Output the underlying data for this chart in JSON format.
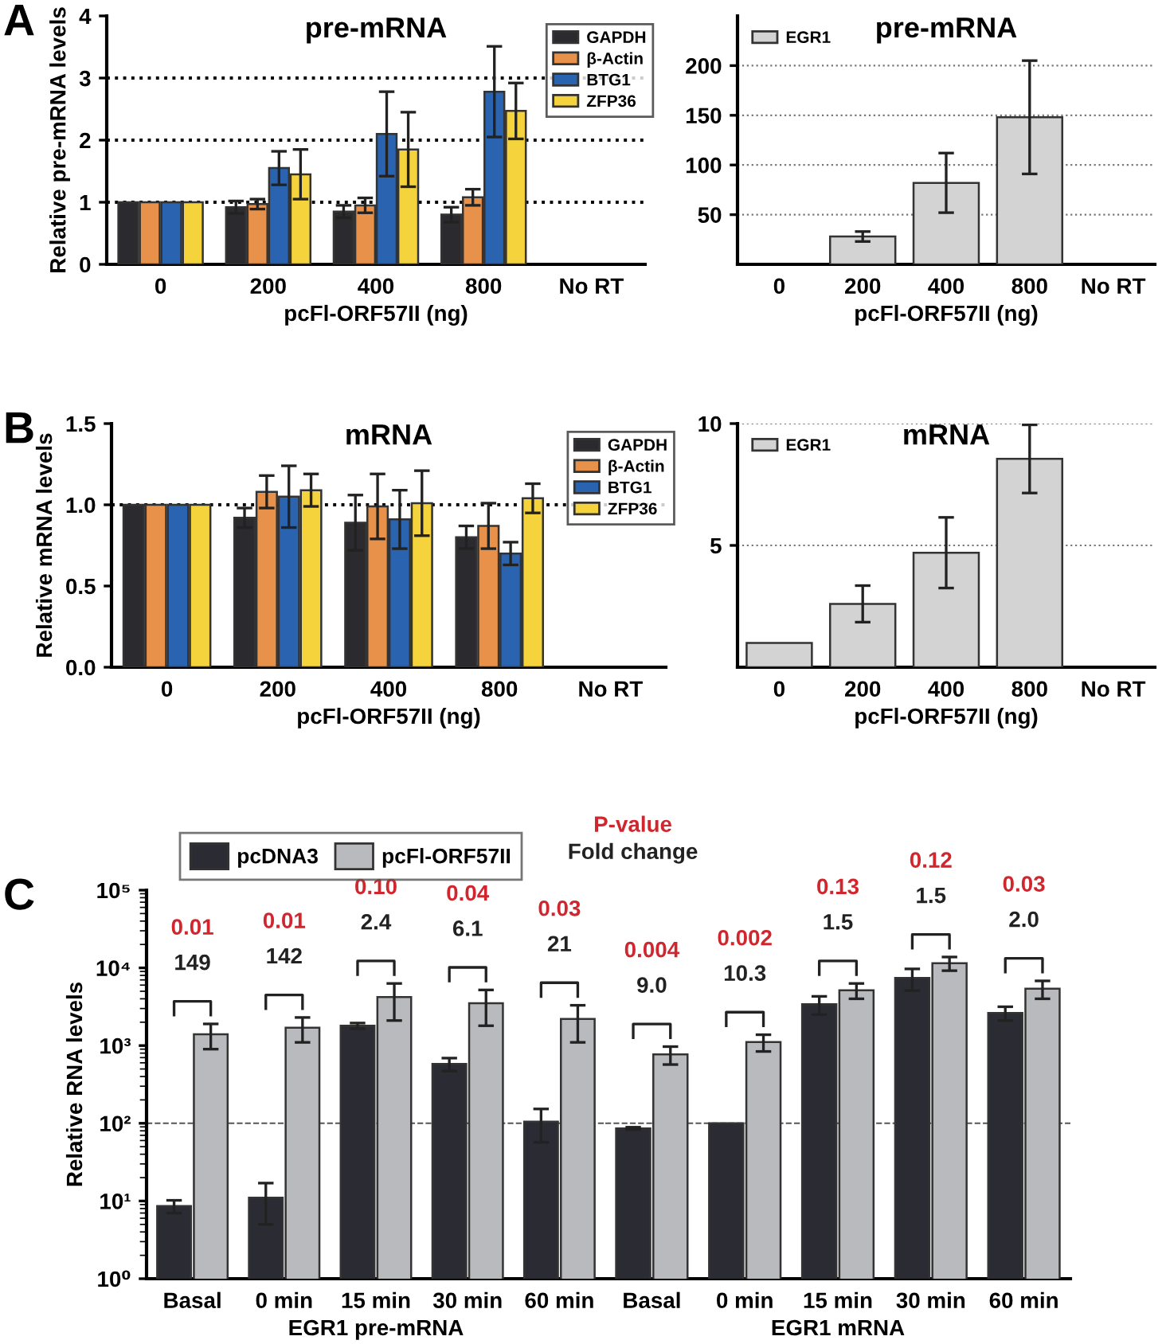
{
  "chart_data": [
    {
      "type": "bar",
      "title": "pre-mRNA",
      "xlabel": "pcFl-ORF57II (ng)",
      "ylabel": "Relative pre-mRNA levels",
      "annotations": [
        "A"
      ],
      "categories": [
        "0",
        "200",
        "400",
        "800",
        "No RT"
      ],
      "series": [
        {
          "name": "GAPDH",
          "color": "#2b2b2f",
          "values": [
            1,
            0.92,
            0.85,
            0.8,
            null
          ],
          "errors": [
            null,
            0.1,
            0.1,
            0.12,
            null
          ]
        },
        {
          "name": "β-Actin",
          "color": "#e8914a",
          "values": [
            1,
            0.97,
            0.95,
            1.08,
            null
          ],
          "errors": [
            null,
            0.08,
            0.12,
            0.13,
            null
          ]
        },
        {
          "name": "BTG1",
          "color": "#2a64b0",
          "values": [
            1,
            1.55,
            2.1,
            2.78,
            null
          ],
          "errors": [
            null,
            0.27,
            0.68,
            0.73,
            null
          ]
        },
        {
          "name": "ZFP36",
          "color": "#f5d33c",
          "values": [
            1,
            1.45,
            1.85,
            2.47,
            null
          ],
          "errors": [
            null,
            0.4,
            0.6,
            0.45,
            null
          ]
        }
      ],
      "ylim": [
        0,
        4
      ],
      "yticks": [
        0,
        1,
        2,
        3,
        4
      ],
      "grid": false,
      "legend": "top right",
      "ref_lines": [
        {
          "axis": "y",
          "value": 1,
          "line_style": "dotted",
          "color": "#000000"
        },
        {
          "axis": "y",
          "value": 2,
          "line_style": "dotted",
          "color": "#000000"
        },
        {
          "axis": "y",
          "value": 3,
          "line_style": "dotted",
          "color": "#000000"
        }
      ]
    },
    {
      "type": "bar",
      "title": "pre-mRNA",
      "xlabel": "pcFl-ORF57II (ng)",
      "categories": [
        "0",
        "200",
        "400",
        "800",
        "No RT"
      ],
      "series": [
        {
          "name": "EGR1",
          "color": "#d3d3d3",
          "values": [
            null,
            28,
            82,
            148,
            null
          ],
          "errors": [
            null,
            5,
            30,
            57,
            null
          ]
        }
      ],
      "ylim": [
        0,
        250
      ],
      "yticks": [
        50,
        100,
        150,
        200
      ],
      "grid": "y",
      "legend": "top left"
    },
    {
      "type": "bar",
      "title": "mRNA",
      "xlabel": "pcFl-ORF57II (ng)",
      "ylabel": "Relative mRNA levels",
      "annotations": [
        "B"
      ],
      "categories": [
        "0",
        "200",
        "400",
        "800",
        "No RT"
      ],
      "series": [
        {
          "name": "GAPDH",
          "color": "#2b2b2f",
          "values": [
            1,
            0.92,
            0.89,
            0.8,
            null
          ],
          "errors": [
            null,
            0.06,
            0.17,
            0.07,
            null
          ]
        },
        {
          "name": "β-Actin",
          "color": "#e8914a",
          "values": [
            1,
            1.08,
            0.99,
            0.87,
            null
          ],
          "errors": [
            null,
            0.1,
            0.2,
            0.14,
            null
          ]
        },
        {
          "name": "BTG1",
          "color": "#2a64b0",
          "values": [
            1,
            1.05,
            0.91,
            0.7,
            null
          ],
          "errors": [
            null,
            0.19,
            0.18,
            0.07,
            null
          ]
        },
        {
          "name": "ZFP36",
          "color": "#f5d33c",
          "values": [
            1,
            1.09,
            1.01,
            1.04,
            null
          ],
          "errors": [
            null,
            0.1,
            0.2,
            0.09,
            null
          ]
        }
      ],
      "ylim": [
        0,
        1.5
      ],
      "yticks": [
        {
          "value": 0,
          "label": "0.0"
        },
        {
          "value": 0.5,
          "label": "0.5"
        },
        {
          "value": 1,
          "label": "1.0"
        },
        {
          "value": 1.5,
          "label": "1.5"
        }
      ],
      "grid": false,
      "legend": "top right",
      "ref_lines": [
        {
          "axis": "y",
          "value": 1,
          "line_style": "dotted",
          "color": "#000000"
        }
      ]
    },
    {
      "type": "bar",
      "title": "mRNA",
      "xlabel": "pcFl-ORF57II (ng)",
      "categories": [
        "0",
        "200",
        "400",
        "800",
        "No RT"
      ],
      "series": [
        {
          "name": "EGR1",
          "color": "#d3d3d3",
          "values": [
            1.0,
            2.6,
            4.7,
            8.55,
            null
          ],
          "errors": [
            null,
            0.75,
            1.45,
            1.4,
            null
          ]
        }
      ],
      "ylim": [
        0,
        10
      ],
      "yticks": [
        5,
        10
      ],
      "grid": "y",
      "legend": "top left"
    },
    {
      "type": "bar",
      "xlabel": "EGR1 pre-mRNA",
      "ylabel": "Relative RNA levels",
      "log": true,
      "legend": "top",
      "categories": [
        "Basal",
        "0 min",
        "15 min",
        "30 min",
        "60 min"
      ],
      "series": [
        {
          "name": "pcDNA3",
          "color": "#2b2c33",
          "values": [
            8.6,
            11,
            1800,
            580,
            105
          ],
          "errors": [
            1.6,
            6,
            150,
            110,
            48
          ]
        },
        {
          "name": "pcFl-ORF57II",
          "color": "#b9babd",
          "values": [
            1400,
            1700,
            4200,
            3500,
            2200
          ],
          "errors": [
            500,
            600,
            2100,
            1700,
            1100
          ]
        }
      ],
      "ylim": [
        1,
        100000
      ],
      "yticks": [
        {
          "value": 1,
          "label": "10⁰"
        },
        {
          "value": 10,
          "label": "10¹"
        },
        {
          "value": 100,
          "label": "10²"
        },
        {
          "value": 1000,
          "label": "10³"
        },
        {
          "value": 10000,
          "label": "10⁴"
        },
        {
          "value": 100000,
          "label": "10⁵"
        }
      ],
      "ref_lines": [
        {
          "axis": "y",
          "value": 100,
          "line_style": "dashed",
          "color": "#555555"
        }
      ],
      "annotations": [
        "C",
        "P-value",
        "Fold change",
        "0.01",
        "149",
        "0.01",
        "142",
        "0.10",
        "2.4",
        "0.04",
        "6.1",
        "0.03",
        "21"
      ]
    },
    {
      "type": "bar",
      "xlabel": "EGR1 mRNA",
      "log": true,
      "tick_labels": "x",
      "categories": [
        "Basal",
        "0 min",
        "15 min",
        "30 min",
        "60 min"
      ],
      "series": [
        {
          "color": "#2b2c33",
          "values": [
            86,
            100,
            3400,
            7400,
            2630
          ],
          "errors": [
            3,
            null,
            900,
            2300,
            530
          ]
        },
        {
          "color": "#b9babd",
          "values": [
            770,
            1110,
            5150,
            11500,
            5400
          ],
          "errors": [
            200,
            270,
            1150,
            2300,
            1400
          ]
        }
      ],
      "ylim": [
        1,
        100000
      ],
      "ref_lines": [
        {
          "axis": "y",
          "value": 100,
          "line_style": "dashed",
          "color": "#555555"
        }
      ],
      "annotations": [
        "0.004",
        "9.0",
        "0.002",
        "10.3",
        "0.13",
        "1.5",
        "0.12",
        "1.5",
        "0.03",
        "2.0"
      ]
    }
  ]
}
